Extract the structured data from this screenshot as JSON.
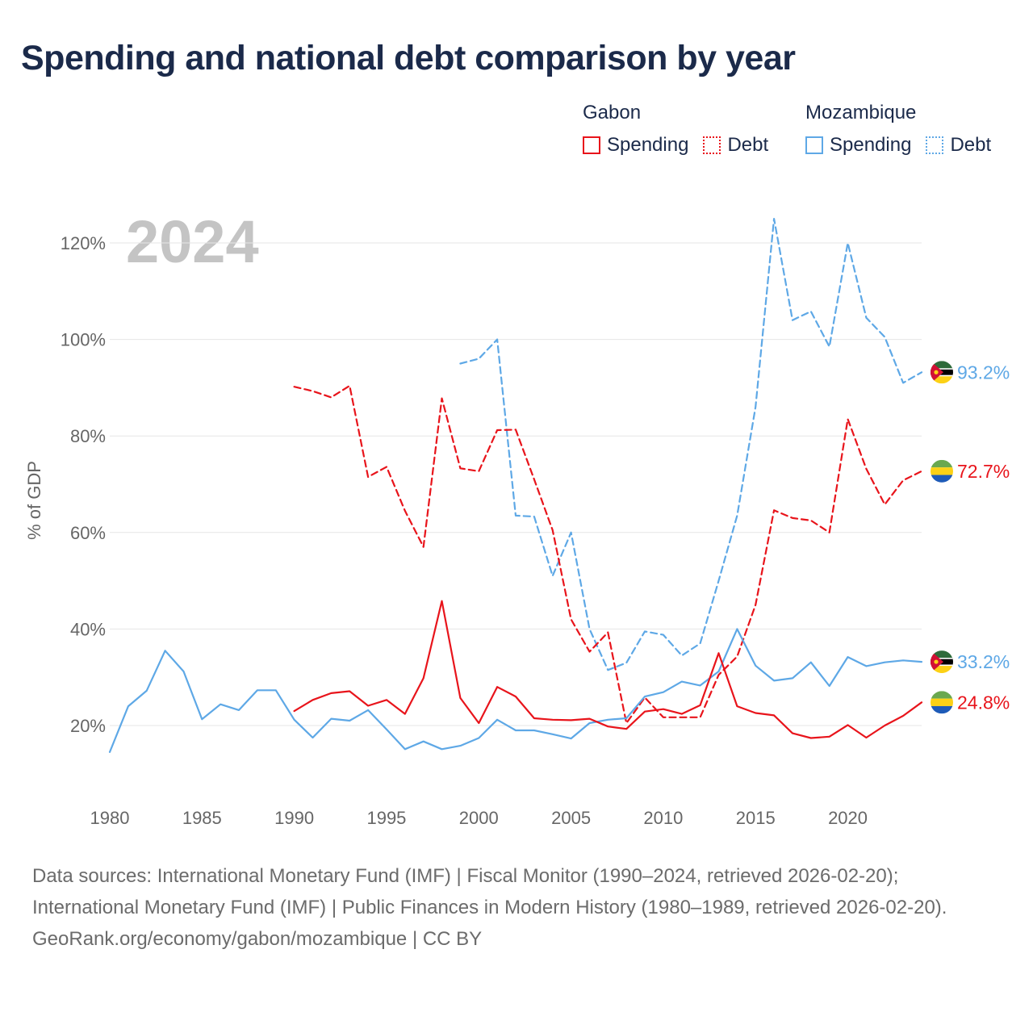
{
  "title": "Spending and national debt comparison by year",
  "legend": {
    "groups": [
      {
        "country": "Gabon",
        "items": [
          {
            "label": "Spending",
            "style": "solid",
            "color": "#e8141b"
          },
          {
            "label": "Debt",
            "style": "dotted",
            "color": "#e8141b"
          }
        ]
      },
      {
        "country": "Mozambique",
        "items": [
          {
            "label": "Spending",
            "style": "solid",
            "color": "#5ea8e6"
          },
          {
            "label": "Debt",
            "style": "dotted",
            "color": "#5ea8e6"
          }
        ]
      }
    ]
  },
  "chart_data": {
    "type": "line",
    "year_watermark": "2024",
    "ylabel": "% of GDP",
    "xlim": [
      1980,
      2024
    ],
    "ylim": [
      8,
      130
    ],
    "x_ticks": [
      1980,
      1985,
      1990,
      1995,
      2000,
      2005,
      2010,
      2015,
      2020
    ],
    "y_ticks": [
      20,
      40,
      60,
      80,
      100,
      120
    ],
    "y_tick_labels": [
      "20%",
      "40%",
      "60%",
      "80%",
      "100%",
      "120%"
    ],
    "series": [
      {
        "name": "Mozambique Debt",
        "color": "#5ea8e6",
        "dash": "dashed",
        "x": [
          1999,
          2000,
          2001,
          2002,
          2003,
          2004,
          2005,
          2006,
          2007,
          2008,
          2009,
          2010,
          2011,
          2012,
          2013,
          2014,
          2015,
          2016,
          2017,
          2018,
          2019,
          2020,
          2021,
          2022,
          2023,
          2024
        ],
        "y": [
          95,
          96,
          100,
          63.5,
          63.3,
          51,
          60,
          40,
          31.5,
          33,
          39.5,
          38.8,
          34.5,
          37,
          50,
          63.5,
          86,
          125,
          104,
          105.8,
          98.5,
          120,
          104.5,
          100.5,
          91,
          93.2
        ],
        "end_label": "93.2%",
        "flag": "mozambique"
      },
      {
        "name": "Gabon Debt",
        "color": "#e8141b",
        "dash": "dashed",
        "x": [
          1990,
          1991,
          1992,
          1993,
          1994,
          1995,
          1996,
          1997,
          1998,
          1999,
          2000,
          2001,
          2002,
          2003,
          2004,
          2005,
          2006,
          2007,
          2008,
          2009,
          2010,
          2011,
          2012,
          2013,
          2014,
          2015,
          2016,
          2017,
          2018,
          2019,
          2020,
          2021,
          2022,
          2023,
          2024
        ],
        "y": [
          90.2,
          89.3,
          88,
          90.4,
          71.5,
          73.6,
          64.5,
          57,
          87.8,
          73.3,
          72.7,
          81.2,
          81.3,
          71,
          60.5,
          42,
          35.3,
          39.3,
          20.5,
          25.8,
          21.7,
          21.7,
          21.7,
          30.5,
          34.3,
          45,
          64.6,
          63,
          62.5,
          60,
          83.5,
          73.2,
          65.8,
          70.8,
          72.7
        ],
        "end_label": "72.7%",
        "flag": "gabon"
      },
      {
        "name": "Mozambique Spending",
        "color": "#5ea8e6",
        "dash": "solid",
        "x": [
          1980,
          1981,
          1982,
          1983,
          1984,
          1985,
          1986,
          1987,
          1988,
          1989,
          1990,
          1991,
          1992,
          1993,
          1994,
          1995,
          1996,
          1997,
          1998,
          1999,
          2000,
          2001,
          2002,
          2003,
          2004,
          2005,
          2006,
          2007,
          2008,
          2009,
          2010,
          2011,
          2012,
          2013,
          2014,
          2015,
          2016,
          2017,
          2018,
          2019,
          2020,
          2021,
          2022,
          2023,
          2024
        ],
        "y": [
          14.5,
          24,
          27.2,
          35.5,
          31.2,
          21.3,
          24.4,
          23.2,
          27.3,
          27.3,
          21.2,
          17.5,
          21.4,
          21,
          23.2,
          19.2,
          15.1,
          16.7,
          15.1,
          15.8,
          17.4,
          21.2,
          19,
          19,
          18.2,
          17.3,
          20.5,
          21.2,
          21.5,
          26,
          26.9,
          29.1,
          28.3,
          31.2,
          40,
          32.4,
          29.3,
          29.8,
          33.1,
          28.2,
          34.2,
          32.3,
          33.1,
          33.5,
          33.2
        ],
        "end_label": "33.2%",
        "flag": "mozambique"
      },
      {
        "name": "Gabon Spending",
        "color": "#e8141b",
        "dash": "solid",
        "x": [
          1990,
          1991,
          1992,
          1993,
          1994,
          1995,
          1996,
          1997,
          1998,
          1999,
          2000,
          2001,
          2002,
          2003,
          2004,
          2005,
          2006,
          2007,
          2008,
          2009,
          2010,
          2011,
          2012,
          2013,
          2014,
          2015,
          2016,
          2017,
          2018,
          2019,
          2020,
          2021,
          2022,
          2023,
          2024
        ],
        "y": [
          23,
          25.3,
          26.7,
          27.1,
          24.1,
          25.3,
          22.4,
          29.8,
          45.8,
          25.7,
          20.5,
          28,
          26,
          21.5,
          21.2,
          21.1,
          21.4,
          19.8,
          19.3,
          22.9,
          23.4,
          22.4,
          24.2,
          35,
          24,
          22.6,
          22.1,
          18.4,
          17.4,
          17.7,
          20.1,
          17.5,
          20,
          22,
          24.8
        ],
        "end_label": "24.8%",
        "flag": "gabon"
      }
    ]
  },
  "footer": {
    "sources": "Data sources: International Monetary Fund (IMF) | Fiscal Monitor (1990–2024, retrieved 2026-02-20); International Monetary Fund (IMF) | Public Finances in Modern History (1980–1989, retrieved 2026-02-20).",
    "credit": "GeoRank.org/economy/gabon/mozambique | CC BY"
  }
}
